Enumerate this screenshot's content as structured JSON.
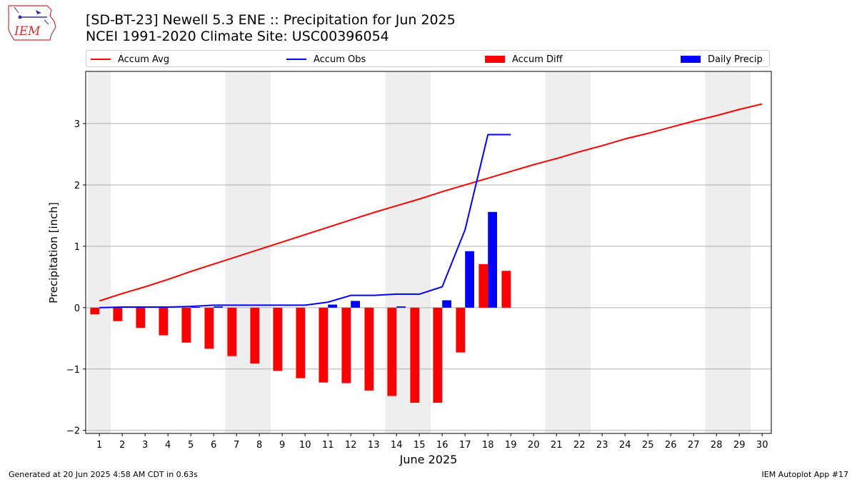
{
  "title_line1": "[SD-BT-23] Newell 5.3 ENE :: Precipitation for Jun 2025",
  "title_line2": "NCEI 1991-2020 Climate Site: USC00396054",
  "footer_left": "Generated at 20 Jun 2025 4:58 AM CDT in 0.63s",
  "footer_right": "IEM Autoplot App #17",
  "logo_text": "IEM",
  "legend": [
    {
      "label": "Accum Avg",
      "kind": "line",
      "color": "#ff0000"
    },
    {
      "label": "Accum Obs",
      "kind": "line",
      "color": "#0000ff"
    },
    {
      "label": "Accum Diff",
      "kind": "box",
      "color": "#ff0000"
    },
    {
      "label": "Daily Precip",
      "kind": "box",
      "color": "#0000ff"
    }
  ],
  "chart_data": {
    "type": "bar",
    "xlabel": "June 2025",
    "ylabel": "Precipitation [inch]",
    "ylim": [
      -2.05,
      3.85
    ],
    "yticks": [
      -2,
      -1,
      0,
      1,
      2,
      3
    ],
    "ytick_labels": [
      "−2",
      "−1",
      "0",
      "1",
      "2",
      "3"
    ],
    "grid": true,
    "days": [
      1,
      2,
      3,
      4,
      5,
      6,
      7,
      8,
      9,
      10,
      11,
      12,
      13,
      14,
      15,
      16,
      17,
      18,
      19,
      20,
      21,
      22,
      23,
      24,
      25,
      26,
      27,
      28,
      29,
      30
    ],
    "weekend_days": [
      1,
      7,
      8,
      14,
      15,
      21,
      22,
      28,
      29
    ],
    "series": [
      {
        "name": "Accum Avg",
        "kind": "line",
        "color": "#ff0000",
        "x": [
          1,
          2,
          3,
          4,
          5,
          6,
          7,
          8,
          9,
          10,
          11,
          12,
          13,
          14,
          15,
          16,
          17,
          18,
          19,
          20,
          21,
          22,
          23,
          24,
          25,
          26,
          27,
          28,
          29,
          30
        ],
        "values": [
          0.11,
          0.23,
          0.34,
          0.46,
          0.59,
          0.71,
          0.83,
          0.95,
          1.07,
          1.19,
          1.31,
          1.43,
          1.55,
          1.66,
          1.77,
          1.89,
          2.0,
          2.11,
          2.22,
          2.33,
          2.43,
          2.54,
          2.64,
          2.75,
          2.84,
          2.94,
          3.04,
          3.13,
          3.23,
          3.32
        ]
      },
      {
        "name": "Accum Obs",
        "kind": "line",
        "color": "#0000ff",
        "x": [
          1,
          2,
          3,
          4,
          5,
          6,
          7,
          8,
          9,
          10,
          11,
          12,
          13,
          14,
          15,
          16,
          17,
          18,
          19
        ],
        "values": [
          0.0,
          0.01,
          0.01,
          0.01,
          0.02,
          0.04,
          0.04,
          0.04,
          0.04,
          0.04,
          0.09,
          0.2,
          0.2,
          0.22,
          0.22,
          0.34,
          1.27,
          2.82,
          2.82
        ]
      },
      {
        "name": "Accum Diff",
        "kind": "bar",
        "color": "#ff0000",
        "x": [
          1,
          2,
          3,
          4,
          5,
          6,
          7,
          8,
          9,
          10,
          11,
          12,
          13,
          14,
          15,
          16,
          17,
          18,
          19
        ],
        "values": [
          -0.11,
          -0.22,
          -0.33,
          -0.45,
          -0.57,
          -0.67,
          -0.79,
          -0.91,
          -1.03,
          -1.15,
          -1.22,
          -1.23,
          -1.35,
          -1.44,
          -1.55,
          -1.55,
          -0.73,
          0.71,
          0.6
        ]
      },
      {
        "name": "Daily Precip",
        "kind": "bar",
        "color": "#0000ff",
        "x": [
          1,
          2,
          3,
          4,
          5,
          6,
          7,
          8,
          9,
          10,
          11,
          12,
          13,
          14,
          15,
          16,
          17,
          18,
          19
        ],
        "values": [
          0.0,
          0.0,
          0.0,
          0.0,
          0.01,
          0.02,
          0.0,
          0.0,
          0.0,
          0.0,
          0.05,
          0.11,
          0.0,
          0.02,
          0.0,
          0.12,
          0.92,
          1.56,
          0.0
        ]
      }
    ]
  }
}
